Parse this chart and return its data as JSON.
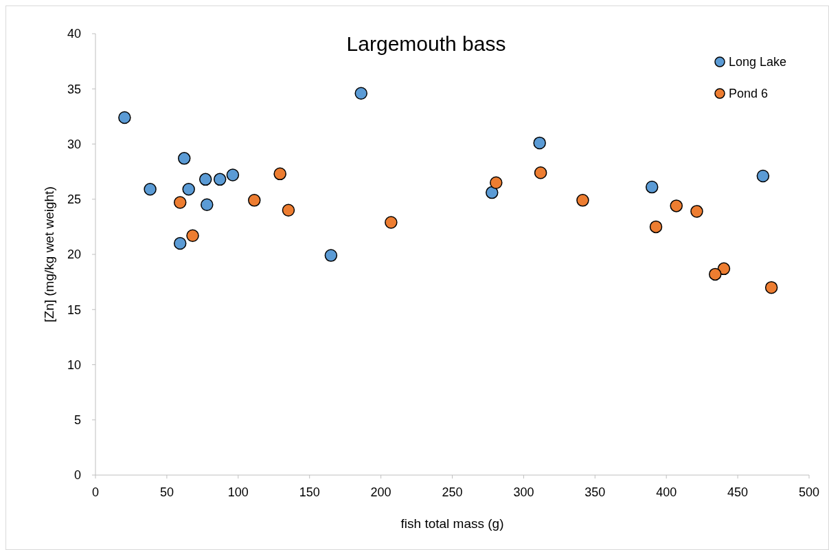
{
  "chart_data": {
    "type": "scatter",
    "title": "Largemouth bass",
    "xlabel": "fish total mass (g)",
    "ylabel": "[Zn] (mg/kg wet weight)",
    "xlim": [
      0,
      500
    ],
    "xticks": [
      0,
      50,
      100,
      150,
      200,
      250,
      300,
      350,
      400,
      450,
      500
    ],
    "ylim": [
      0,
      40
    ],
    "yticks": [
      0,
      5,
      10,
      15,
      20,
      25,
      30,
      35,
      40
    ],
    "grid": false,
    "legend": "top right",
    "marker": "circle",
    "series": [
      {
        "name": "Long Lake",
        "color": "#5b9bd5",
        "x": [
          20.4,
          38.3,
          62.2,
          65.3,
          77.1,
          87.2,
          96.2,
          78.1,
          59.3,
          165,
          186.1,
          311.2,
          277.8,
          389.9,
          467.7
        ],
        "values": [
          32.4,
          25.9,
          28.7,
          25.9,
          26.8,
          26.8,
          27.2,
          24.5,
          21.0,
          19.9,
          34.6,
          30.1,
          25.6,
          26.1,
          27.1
        ]
      },
      {
        "name": "Pond 6",
        "color": "#ed7d31",
        "x": [
          59.3,
          68.1,
          111.3,
          129.3,
          135.2,
          207.1,
          280.7,
          311.9,
          341.4,
          407,
          421.3,
          392.7,
          440.3,
          434.2,
          473.6
        ],
        "values": [
          24.7,
          21.7,
          24.9,
          27.3,
          24.0,
          22.9,
          26.5,
          27.4,
          24.9,
          24.4,
          23.9,
          22.5,
          18.7,
          18.2,
          17.0
        ]
      }
    ]
  }
}
